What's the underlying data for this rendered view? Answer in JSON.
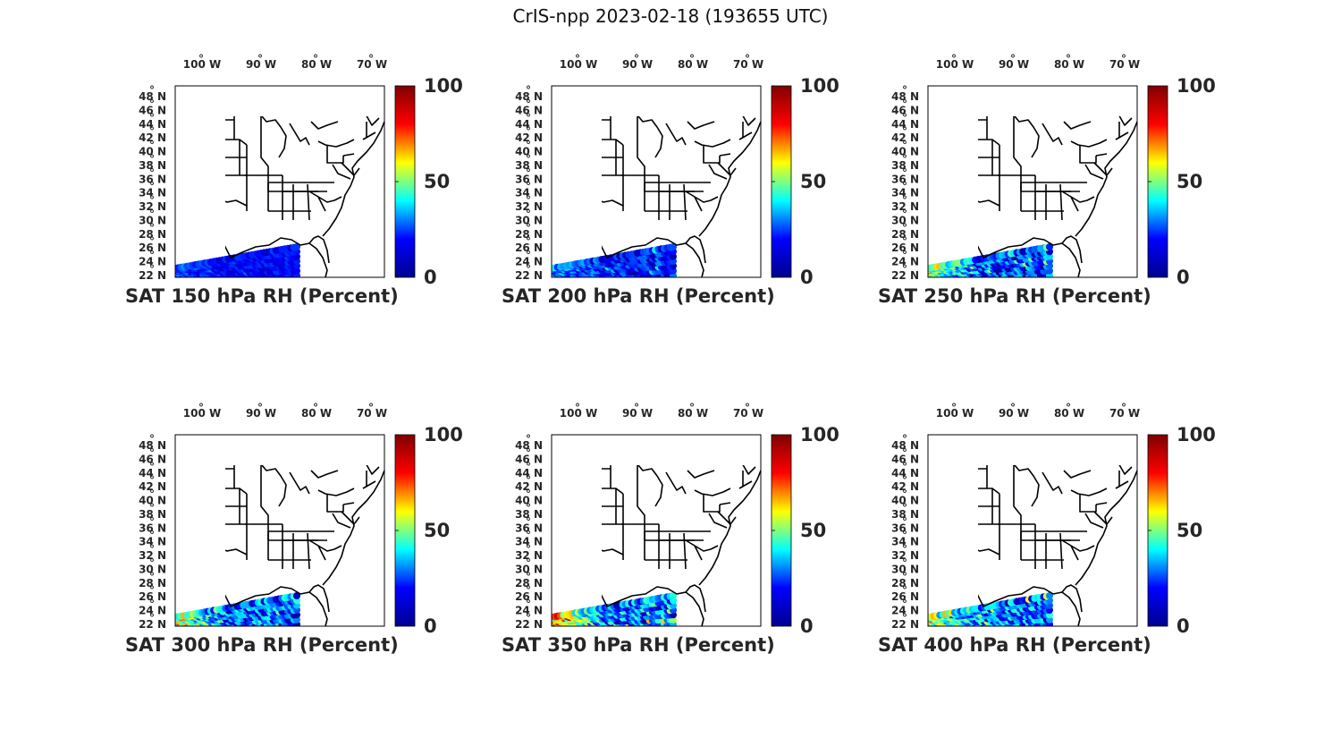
{
  "title": "CrIS-npp 2023-02-18 (193655 UTC)",
  "colorbar": {
    "min": 0,
    "max": 100,
    "tick_labels": [
      "100",
      "50",
      "0"
    ],
    "colormap": "jet",
    "stops": [
      "#00008f",
      "#0000ff",
      "#00ffff",
      "#ffff00",
      "#ff0000",
      "#800000"
    ]
  },
  "map": {
    "lon_tick_labels": [
      "100",
      "90",
      "80",
      "70"
    ],
    "lon_suffix": "W",
    "lat_tick_labels": [
      "48",
      "46",
      "44",
      "42",
      "40",
      "38",
      "36",
      "34",
      "32",
      "30",
      "28",
      "26",
      "24",
      "22"
    ],
    "lat_suffix": "N",
    "degree_symbol": "°"
  },
  "panels": [
    {
      "caption": "SAT 150 hPa RH (Percent)",
      "swath_base": 12,
      "swath_var": 6,
      "swath_peak": 20
    },
    {
      "caption": "SAT 200 hPa RH (Percent)",
      "swath_base": 15,
      "swath_var": 12,
      "swath_peak": 30
    },
    {
      "caption": "SAT 250 hPa RH (Percent)",
      "swath_base": 18,
      "swath_var": 18,
      "swath_peak": 62
    },
    {
      "caption": "SAT 300 hPa RH (Percent)",
      "swath_base": 22,
      "swath_var": 20,
      "swath_peak": 68
    },
    {
      "caption": "SAT 350 hPa RH (Percent)",
      "swath_base": 26,
      "swath_var": 22,
      "swath_peak": 82
    },
    {
      "caption": "SAT 400 hPa RH (Percent)",
      "swath_base": 24,
      "swath_var": 20,
      "swath_peak": 65
    }
  ]
}
